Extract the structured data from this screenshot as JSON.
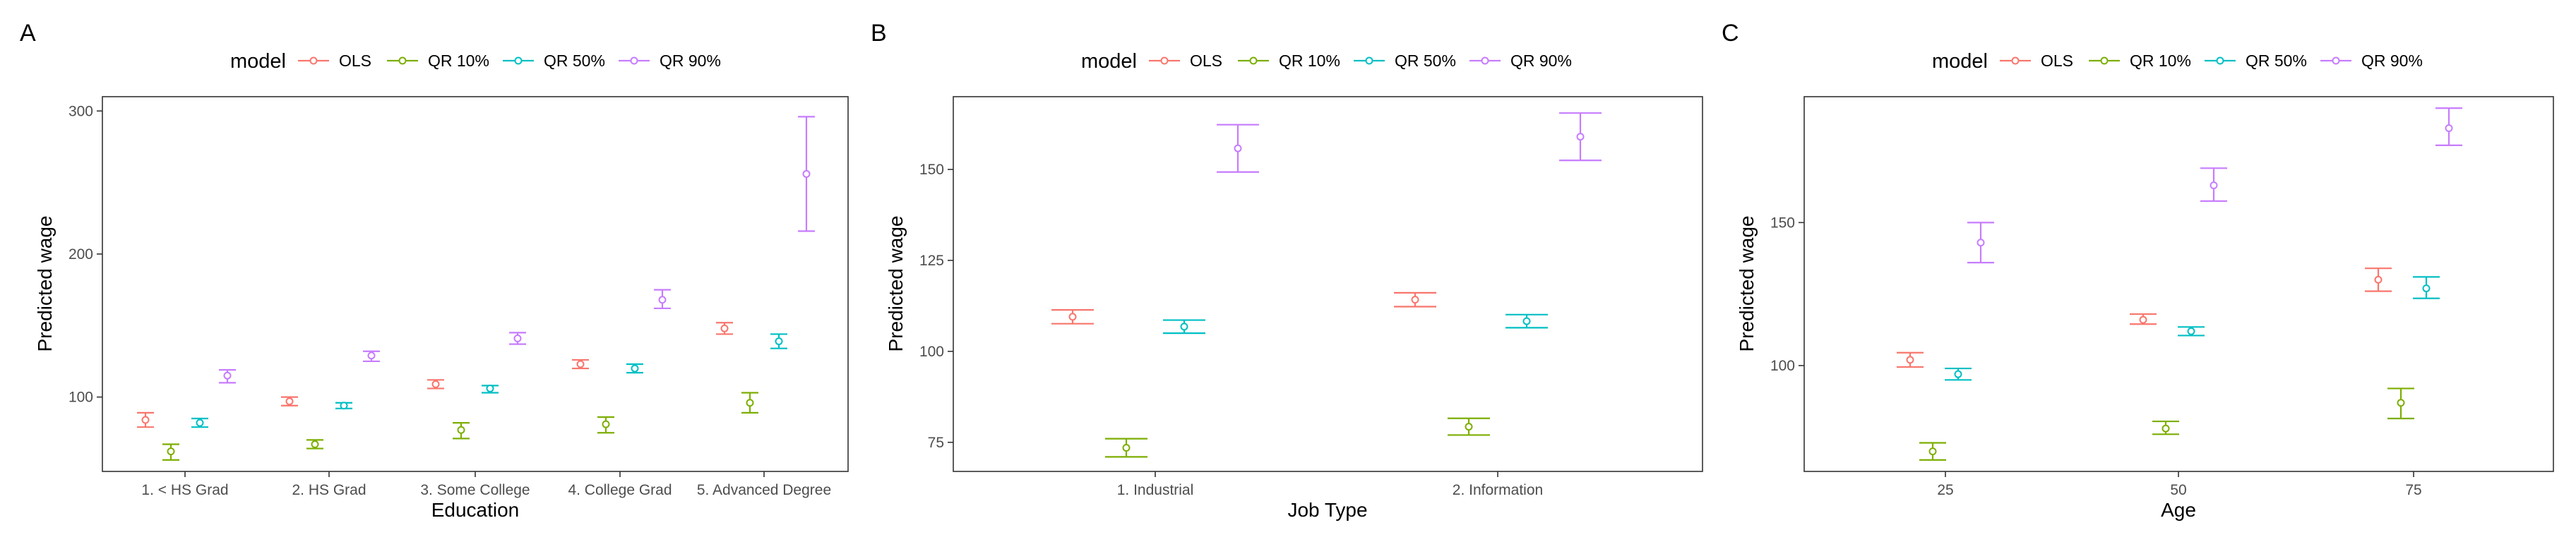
{
  "figure": {
    "legend_title": "model",
    "colors": {
      "OLS": "#F8766D",
      "QR 10%": "#7CAE00",
      "QR 50%": "#00BFC4",
      "QR 90%": "#C77CFF"
    }
  },
  "chart_data": [
    {
      "type": "errorbar",
      "tag": "A",
      "legend_title": "model",
      "legend_position": "top",
      "xlabel": "Education",
      "ylabel": "Predicted wage",
      "categories": [
        "1. < HS Grad",
        "2. HS Grad",
        "3. Some College",
        "4. College Grad",
        "5. Advanced Degree"
      ],
      "ylim": [
        48,
        310
      ],
      "yticks": [
        100,
        200,
        300
      ],
      "grid": false,
      "series": [
        {
          "name": "OLS",
          "color": "#F8766D",
          "values": [
            84,
            97,
            109,
            123,
            148
          ],
          "lower": [
            79,
            94,
            106,
            120,
            144
          ],
          "upper": [
            89,
            100,
            112,
            126,
            152
          ]
        },
        {
          "name": "QR 10%",
          "color": "#7CAE00",
          "values": [
            62,
            67,
            77,
            81,
            96
          ],
          "lower": [
            56,
            64,
            71,
            75,
            89
          ],
          "upper": [
            67,
            70,
            82,
            86,
            103
          ]
        },
        {
          "name": "QR 50%",
          "color": "#00BFC4",
          "values": [
            82,
            94,
            106,
            120,
            139
          ],
          "lower": [
            79,
            92,
            103,
            117,
            134
          ],
          "upper": [
            85,
            96,
            108,
            123,
            144
          ]
        },
        {
          "name": "QR 90%",
          "color": "#C77CFF",
          "values": [
            115,
            129,
            141,
            168,
            256
          ],
          "lower": [
            110,
            125,
            137,
            162,
            216
          ],
          "upper": [
            119,
            132,
            145,
            175,
            296
          ]
        }
      ]
    },
    {
      "type": "errorbar",
      "tag": "B",
      "legend_title": "model",
      "legend_position": "top",
      "xlabel": "Job Type",
      "ylabel": "Predicted wage",
      "categories": [
        "1. Industrial",
        "2. Information"
      ],
      "ylim": [
        67,
        170
      ],
      "yticks": [
        75,
        100,
        125,
        150
      ],
      "grid": false,
      "series": [
        {
          "name": "OLS",
          "color": "#F8766D",
          "values": [
            109.5,
            114.2
          ],
          "lower": [
            107.6,
            112.3
          ],
          "upper": [
            111.4,
            116.1
          ]
        },
        {
          "name": "QR 10%",
          "color": "#7CAE00",
          "values": [
            73.5,
            79.3
          ],
          "lower": [
            71.0,
            77.0
          ],
          "upper": [
            76.0,
            81.6
          ]
        },
        {
          "name": "QR 50%",
          "color": "#00BFC4",
          "values": [
            106.8,
            108.3
          ],
          "lower": [
            105.0,
            106.5
          ],
          "upper": [
            108.6,
            110.1
          ]
        },
        {
          "name": "QR 90%",
          "color": "#C77CFF",
          "values": [
            155.8,
            159.0
          ],
          "lower": [
            149.3,
            152.5
          ],
          "upper": [
            162.3,
            165.5
          ]
        }
      ]
    },
    {
      "type": "errorbar",
      "tag": "C",
      "legend_title": "model",
      "legend_position": "top",
      "xlabel": "Age",
      "ylabel": "Predicted wage",
      "categories": [
        "25",
        "50",
        "75"
      ],
      "ylim": [
        63,
        194
      ],
      "yticks": [
        100,
        150
      ],
      "grid": false,
      "series": [
        {
          "name": "OLS",
          "color": "#F8766D",
          "values": [
            102,
            116,
            130
          ],
          "lower": [
            99.5,
            114.5,
            126
          ],
          "upper": [
            104.5,
            118,
            134
          ]
        },
        {
          "name": "QR 10%",
          "color": "#7CAE00",
          "values": [
            70,
            78,
            87
          ],
          "lower": [
            67,
            76,
            81.5
          ],
          "upper": [
            73,
            80.5,
            92
          ]
        },
        {
          "name": "QR 50%",
          "color": "#00BFC4",
          "values": [
            97,
            112,
            127
          ],
          "lower": [
            95,
            110.5,
            123.5
          ],
          "upper": [
            99,
            113.5,
            131
          ]
        },
        {
          "name": "QR 90%",
          "color": "#C77CFF",
          "values": [
            143,
            163,
            183
          ],
          "lower": [
            136,
            157.5,
            177
          ],
          "upper": [
            150,
            169,
            190
          ]
        }
      ]
    }
  ]
}
